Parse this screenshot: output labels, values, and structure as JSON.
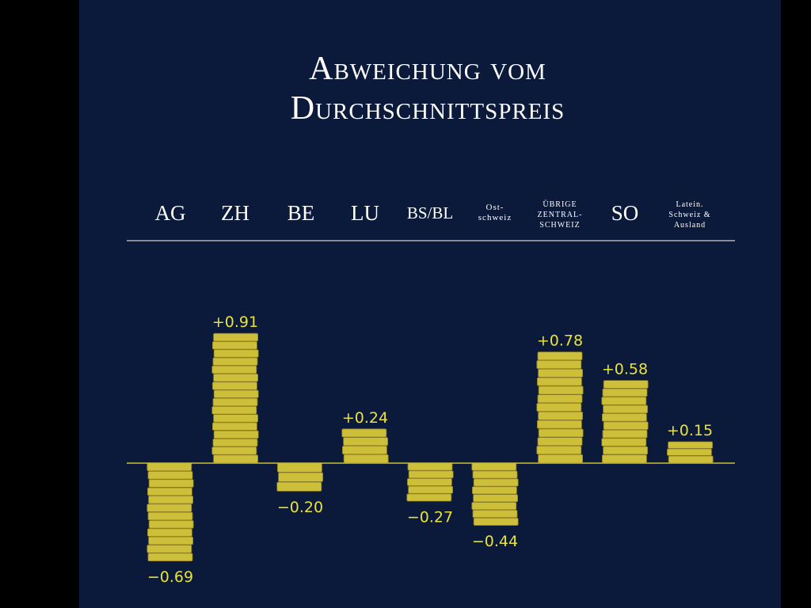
{
  "title": {
    "line1": "Abweichung vom",
    "line2": "Durchschnittspreis"
  },
  "headers": {
    "ag": "AG",
    "zh": "ZH",
    "be": "BE",
    "lu": "LU",
    "bsbl": "BS/BL",
    "ost1": "Ost-",
    "ost2": "schweiz",
    "ueb1": "übrige",
    "ueb2": "Zentral-",
    "ueb3": "schweiz",
    "so": "SO",
    "lat1": "Latein.",
    "lat2": "Schweiz &",
    "lat3": "Ausland"
  },
  "colors": {
    "background": "#0b1a3a",
    "coin": "#cdbf3a",
    "label": "#e9e23a",
    "text": "#ffffff"
  },
  "chart_data": {
    "type": "bar",
    "title": "Abweichung vom Durchschnittspreis",
    "categories": [
      "AG",
      "ZH",
      "BE",
      "LU",
      "BS/BL",
      "Ost-schweiz",
      "übrige Zentral-schweiz",
      "SO",
      "Latein. Schweiz & Ausland"
    ],
    "values": [
      -0.69,
      0.91,
      -0.2,
      0.24,
      -0.27,
      -0.44,
      0.78,
      0.58,
      0.15
    ],
    "labels": [
      "−0.69",
      "+0.91",
      "−0.20",
      "+0.24",
      "−0.27",
      "−0.44",
      "+0.78",
      "+0.58",
      "+0.15"
    ],
    "xlabel": "",
    "ylabel": "",
    "grid": false,
    "legend": "none"
  }
}
